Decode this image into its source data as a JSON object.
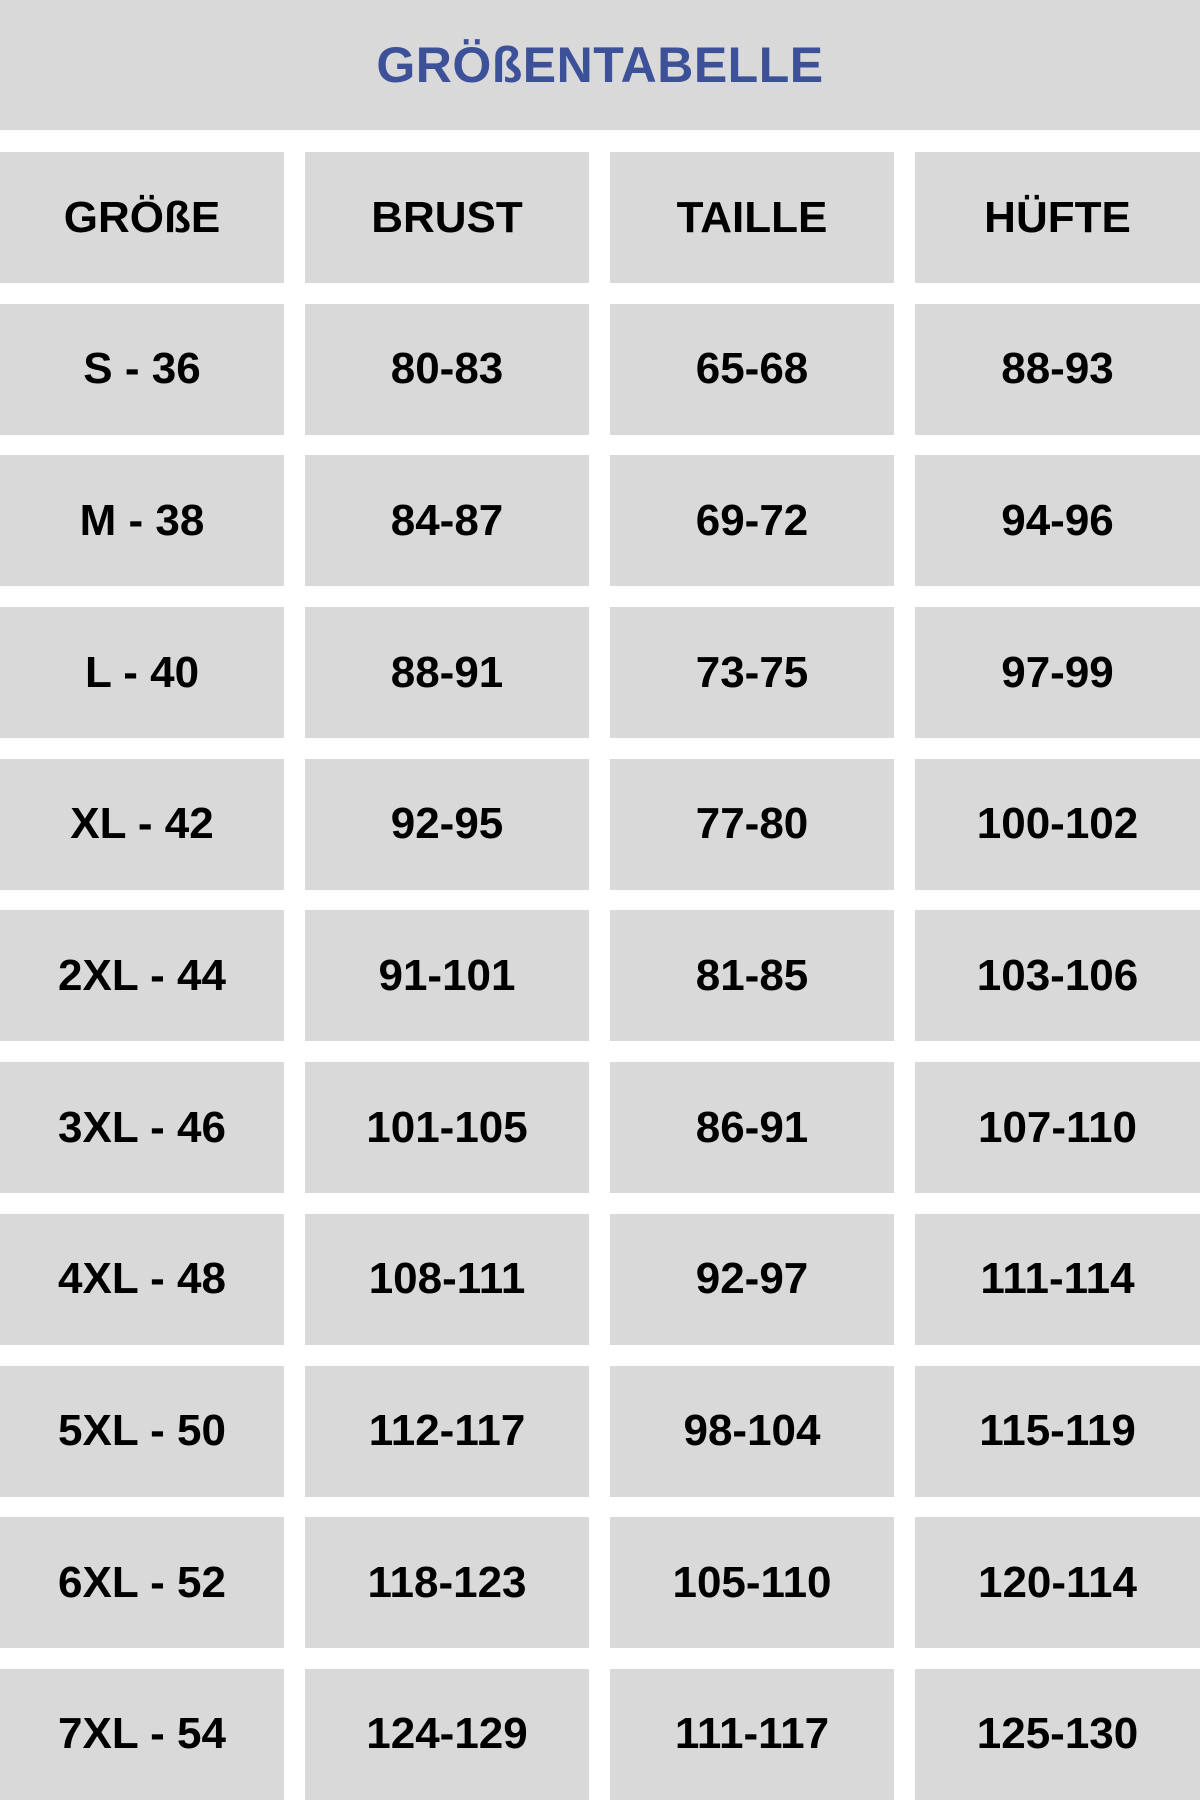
{
  "title": "GRÖßENTABELLE",
  "colors": {
    "title": "#3d5199",
    "cell_background": "#d9d9d9",
    "text": "#000000"
  },
  "headers": [
    "GRÖßE",
    "BRUST",
    "TAILLE",
    "HÜFTE"
  ],
  "rows": [
    [
      "S - 36",
      "80-83",
      "65-68",
      "88-93"
    ],
    [
      "M - 38",
      "84-87",
      "69-72",
      "94-96"
    ],
    [
      "L - 40",
      "88-91",
      "73-75",
      "97-99"
    ],
    [
      "XL - 42",
      "92-95",
      "77-80",
      "100-102"
    ],
    [
      "2XL - 44",
      "91-101",
      "81-85",
      "103-106"
    ],
    [
      "3XL - 46",
      "101-105",
      "86-91",
      "107-110"
    ],
    [
      "4XL - 48",
      "108-111",
      "92-97",
      "111-114"
    ],
    [
      "5XL - 50",
      "112-117",
      "98-104",
      "115-119"
    ],
    [
      "6XL - 52",
      "118-123",
      "105-110",
      "120-114"
    ],
    [
      "7XL - 54",
      "124-129",
      "111-117",
      "125-130"
    ]
  ]
}
